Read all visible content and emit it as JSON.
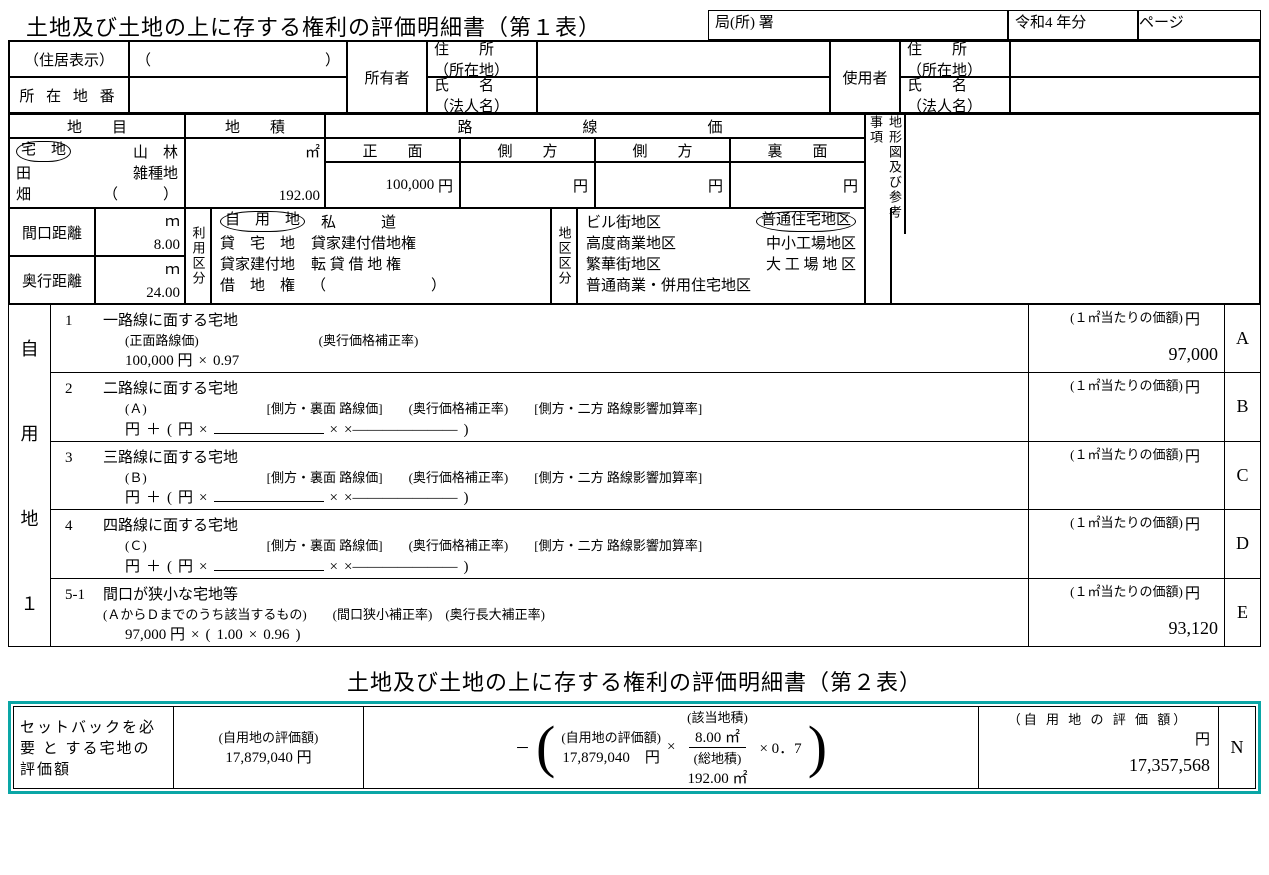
{
  "title1": "土地及び土地の上に存する権利の評価明細書（第１表）",
  "top": {
    "kyoku_l": "局(所)",
    "kyoku_r": "署",
    "year_l": "令和4",
    "year_r": "年分",
    "page": "ページ"
  },
  "blk1": {
    "jukyo": "（住居表示）",
    "paren_l": "（",
    "paren_r": "）",
    "shozai": "所 在 地 番",
    "shoyusha": "所有者",
    "jusho": "住　　所",
    "shozaichi": "（所在地）",
    "shimei": "氏　　名",
    "hojin": "（法人名）",
    "shiyosha": "使用者"
  },
  "blk2": {
    "chimoku": "地　　目",
    "chiseki": "地　　積",
    "rosen": "路　　　　線　　　　価",
    "takuchi": "宅　地",
    "sanrin": "山　林",
    "ta": "田",
    "zasshu": "雑種地",
    "hata": "畑",
    "m2": "㎡",
    "area": "192.00",
    "shomen": "正　　面",
    "sokuho": "側　　方",
    "uramen": "裏　　面",
    "shomen_val": "100,000",
    "yen": "円",
    "chikei": "地形図及び参考事項",
    "maguchi_l": "間口距離",
    "maguchi_v": "8.00",
    "m": "ｍ",
    "okuyuki_l": "奥行距離",
    "okuyuki_v": "24.00",
    "riyo": "利用区分",
    "r1a": "自　用　地",
    "r1b": "私　　　道",
    "r2a": "貸　宅　地",
    "r2b": "貸家建付借地権",
    "r3a": "貸家建付地",
    "r3b": "転 貸 借 地 権",
    "r4a": "借　地　権",
    "r4b": "（　　　　　　　）",
    "chiku": "地区区分",
    "c1a": "ビル街地区",
    "c1b": "普通住宅地区",
    "c2a": "高度商業地区",
    "c2b": "中小工場地区",
    "c3a": "繁華街地区",
    "c3b": "大 工 場 地 区",
    "c4a": "普通商業・併用住宅地区"
  },
  "side": {
    "a": "自",
    "b": "用",
    "c": "地",
    "d": "１"
  },
  "rows": [
    {
      "no": "1",
      "t": "一路線に面する宅地",
      "sub": "(正面路線価)",
      "mid": "(奥行価格補正率)",
      "f": [
        "100,000 円",
        "×",
        "0.97"
      ],
      "price": "97,000",
      "L": "A"
    },
    {
      "no": "2",
      "t": "二路線に面する宅地",
      "sub": "(Ａ)",
      "mid": "[側方・裏面 路線価]　　(奥行価格補正率)　　[側方・二方 路線影響加算率]",
      "f": [
        "円",
        "＋",
        "(",
        "円",
        "×",
        "",
        "×",
        "×―――――――",
        ")"
      ],
      "price": "",
      "L": "B"
    },
    {
      "no": "3",
      "t": "三路線に面する宅地",
      "sub": "(Ｂ)",
      "mid": "[側方・裏面 路線価]　　(奥行価格補正率)　　[側方・二方 路線影響加算率]",
      "f": [
        "円",
        "＋",
        "(",
        "円",
        "×",
        "",
        "×",
        "×―――――――",
        ")"
      ],
      "price": "",
      "L": "C"
    },
    {
      "no": "4",
      "t": "四路線に面する宅地",
      "sub": "(Ｃ)",
      "mid": "[側方・裏面 路線価]　　(奥行価格補正率)　　[側方・二方 路線影響加算率]",
      "f": [
        "円",
        "＋",
        "(",
        "円",
        "×",
        "",
        "×",
        "×―――――――",
        ")"
      ],
      "price": "",
      "L": "D"
    },
    {
      "no": "5-1",
      "t": "間口が狭小な宅地等",
      "sub": "(ＡからＤまでのうち該当するもの)　　(間口狭小補正率)　(奥行長大補正率)",
      "f": [
        "97,000 円",
        "×",
        "(",
        "1.00",
        "×",
        "0.96",
        ")"
      ],
      "price": "93,120",
      "L": "E"
    }
  ],
  "priceHdr": "(１㎡当たりの価額)",
  "yen2": "円",
  "title2": "土地及び土地の上に存する権利の評価明細書（第２表）",
  "blk4": {
    "lbl": "セットバックを必 要 と する宅地の評価額",
    "h1": "(自用地の評価額)",
    "v1": "17,879,040 円",
    "minus": "－",
    "h2": "(自用地の評価額)",
    "v2": "17,879,040　円",
    "x": "×",
    "h3": "(該当地積)",
    "num": "8.00 ㎡",
    "denl": "(総地積)",
    "den": "192.00 ㎡",
    "x07": "× 0．7",
    "rhdr": "（自 用 地 の 評 価 額）",
    "rval": "17,357,568",
    "L": "N"
  }
}
